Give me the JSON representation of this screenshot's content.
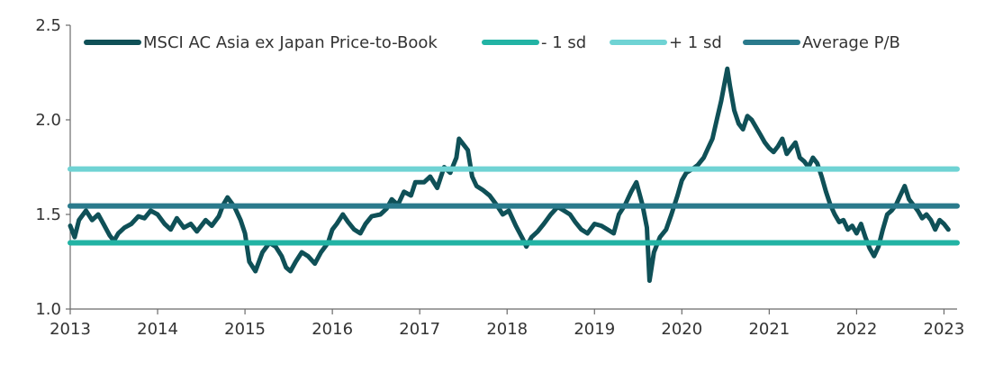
{
  "chart_data": {
    "type": "line",
    "title": "",
    "xlabel": "",
    "ylabel": "",
    "xlim": [
      2013.0,
      2023.15
    ],
    "ylim": [
      1.0,
      2.5
    ],
    "x_ticks": [
      "2013",
      "2014",
      "2015",
      "2016",
      "2017",
      "2018",
      "2019",
      "2020",
      "2021",
      "2022",
      "2023"
    ],
    "y_ticks": [
      "1.0",
      "1.5",
      "2.0",
      "2.5"
    ],
    "grid": false,
    "legend_position": "top",
    "series": [
      {
        "name": "MSCI AC Asia ex Japan Price-to-Book",
        "color": "#0f5057",
        "x": [
          2013.0,
          2013.05,
          2013.1,
          2013.18,
          2013.25,
          2013.32,
          2013.38,
          2013.45,
          2013.5,
          2013.55,
          2013.62,
          2013.7,
          2013.78,
          2013.85,
          2013.92,
          2014.0,
          2014.08,
          2014.15,
          2014.22,
          2014.3,
          2014.38,
          2014.45,
          2014.55,
          2014.62,
          2014.7,
          2014.75,
          2014.8,
          2014.88,
          2014.95,
          2015.0,
          2015.05,
          2015.12,
          2015.2,
          2015.28,
          2015.35,
          2015.42,
          2015.47,
          2015.52,
          2015.58,
          2015.65,
          2015.72,
          2015.8,
          2015.87,
          2015.95,
          2016.0,
          2016.05,
          2016.12,
          2016.18,
          2016.25,
          2016.32,
          2016.38,
          2016.45,
          2016.55,
          2016.62,
          2016.68,
          2016.75,
          2016.82,
          2016.9,
          2016.95,
          2017.05,
          2017.12,
          2017.2,
          2017.28,
          2017.35,
          2017.42,
          2017.45,
          2017.5,
          2017.55,
          2017.6,
          2017.65,
          2017.72,
          2017.8,
          2017.88,
          2017.95,
          2018.02,
          2018.1,
          2018.18,
          2018.22,
          2018.28,
          2018.35,
          2018.42,
          2018.5,
          2018.58,
          2018.65,
          2018.72,
          2018.78,
          2018.85,
          2018.92,
          2019.0,
          2019.08,
          2019.15,
          2019.22,
          2019.28,
          2019.35,
          2019.42,
          2019.48,
          2019.55,
          2019.6,
          2019.63,
          2019.68,
          2019.75,
          2019.82,
          2019.88,
          2019.95,
          2020.0,
          2020.05,
          2020.12,
          2020.18,
          2020.25,
          2020.3,
          2020.35,
          2020.4,
          2020.45,
          2020.5,
          2020.52,
          2020.55,
          2020.6,
          2020.65,
          2020.7,
          2020.75,
          2020.8,
          2020.85,
          2020.9,
          2020.95,
          2021.0,
          2021.05,
          2021.1,
          2021.15,
          2021.2,
          2021.25,
          2021.3,
          2021.35,
          2021.4,
          2021.45,
          2021.5,
          2021.55,
          2021.6,
          2021.65,
          2021.7,
          2021.75,
          2021.8,
          2021.85,
          2021.9,
          2021.95,
          2022.0,
          2022.05,
          2022.1,
          2022.15,
          2022.2,
          2022.25,
          2022.3,
          2022.35,
          2022.4,
          2022.45,
          2022.5,
          2022.55,
          2022.6,
          2022.65,
          2022.7,
          2022.75,
          2022.8,
          2022.85,
          2022.9,
          2022.95,
          2023.0,
          2023.05
        ],
        "values": [
          1.44,
          1.38,
          1.47,
          1.52,
          1.47,
          1.5,
          1.45,
          1.39,
          1.36,
          1.4,
          1.43,
          1.45,
          1.49,
          1.48,
          1.52,
          1.5,
          1.45,
          1.42,
          1.48,
          1.43,
          1.45,
          1.41,
          1.47,
          1.44,
          1.49,
          1.55,
          1.59,
          1.54,
          1.47,
          1.4,
          1.25,
          1.2,
          1.3,
          1.35,
          1.33,
          1.28,
          1.22,
          1.2,
          1.25,
          1.3,
          1.28,
          1.24,
          1.3,
          1.35,
          1.42,
          1.45,
          1.5,
          1.46,
          1.42,
          1.4,
          1.45,
          1.49,
          1.5,
          1.53,
          1.58,
          1.55,
          1.62,
          1.6,
          1.67,
          1.67,
          1.7,
          1.64,
          1.75,
          1.72,
          1.8,
          1.9,
          1.87,
          1.84,
          1.7,
          1.65,
          1.63,
          1.6,
          1.55,
          1.5,
          1.52,
          1.44,
          1.37,
          1.33,
          1.38,
          1.41,
          1.45,
          1.5,
          1.54,
          1.52,
          1.5,
          1.46,
          1.42,
          1.4,
          1.45,
          1.44,
          1.42,
          1.4,
          1.5,
          1.55,
          1.62,
          1.67,
          1.55,
          1.43,
          1.15,
          1.3,
          1.38,
          1.42,
          1.5,
          1.6,
          1.68,
          1.72,
          1.74,
          1.76,
          1.8,
          1.85,
          1.9,
          2.0,
          2.1,
          2.22,
          2.27,
          2.18,
          2.05,
          1.98,
          1.95,
          2.02,
          2.0,
          1.96,
          1.92,
          1.88,
          1.85,
          1.83,
          1.86,
          1.9,
          1.82,
          1.85,
          1.88,
          1.8,
          1.78,
          1.75,
          1.8,
          1.77,
          1.7,
          1.62,
          1.55,
          1.5,
          1.46,
          1.47,
          1.42,
          1.44,
          1.4,
          1.45,
          1.38,
          1.32,
          1.28,
          1.33,
          1.42,
          1.5,
          1.52,
          1.55,
          1.6,
          1.65,
          1.58,
          1.55,
          1.52,
          1.48,
          1.5,
          1.47,
          1.42,
          1.47,
          1.45,
          1.42
        ]
      },
      {
        "name": "- 1 sd",
        "color": "#22b3a4",
        "x": [
          2013.0,
          2023.15
        ],
        "values": [
          1.35,
          1.35
        ]
      },
      {
        "name": "+ 1 sd",
        "color": "#6fd3d4",
        "x": [
          2013.0,
          2023.15
        ],
        "values": [
          1.74,
          1.74
        ]
      },
      {
        "name": "Average P/B",
        "color": "#2a7a8c",
        "x": [
          2013.0,
          2023.15
        ],
        "values": [
          1.545,
          1.545
        ]
      }
    ]
  }
}
